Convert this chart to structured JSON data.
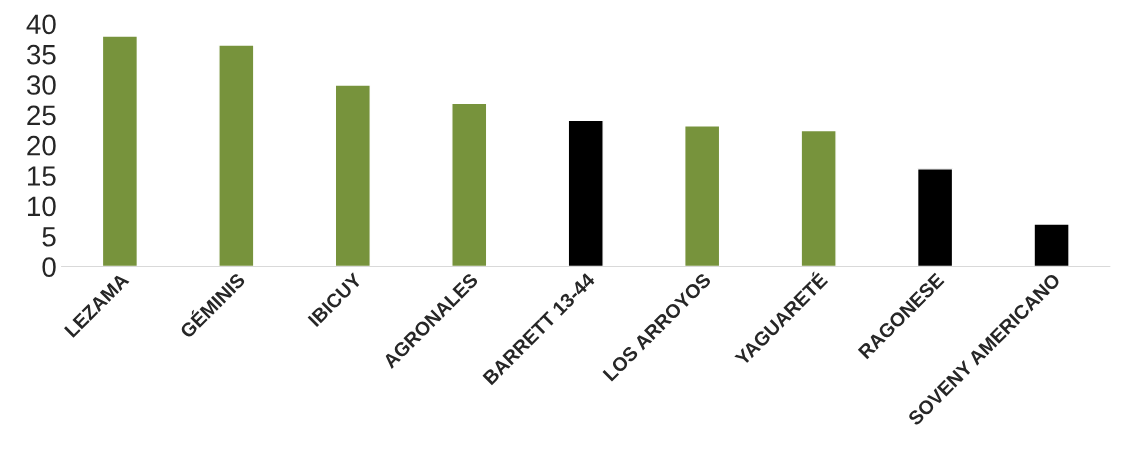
{
  "chart_data": {
    "type": "bar",
    "categories": [
      "LEZAMA",
      "GÉMINIS",
      "IBICUY",
      "AGRONALES",
      "BARRETT 13-44",
      "LOS ARROYOS",
      "YAGUARETÉ",
      "RAGONESE",
      "SOVENY AMERICANO"
    ],
    "values": [
      38,
      36.5,
      29.9,
      26.9,
      24.1,
      23.2,
      22.4,
      16.1,
      7
    ],
    "colors": [
      "#77933c",
      "#77933c",
      "#77933c",
      "#77933c",
      "#000000",
      "#77933c",
      "#77933c",
      "#000000",
      "#000000"
    ],
    "ylim": [
      0,
      40
    ],
    "yticks": [
      0,
      5,
      10,
      15,
      20,
      25,
      30,
      35,
      40
    ],
    "grid": false,
    "legend": false
  }
}
